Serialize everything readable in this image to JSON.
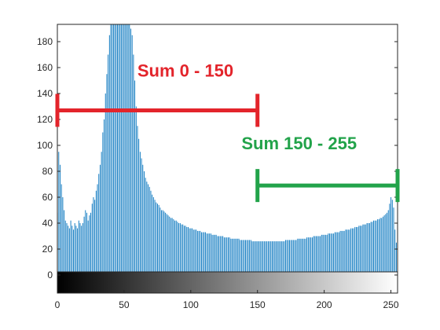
{
  "chart_data": {
    "type": "bar",
    "title": "",
    "xlabel": "",
    "ylabel": "",
    "xlim": [
      0,
      255
    ],
    "ylim": [
      -15,
      200
    ],
    "x_ticks": [
      0,
      50,
      100,
      150,
      200,
      250
    ],
    "y_ticks": [
      0,
      20,
      40,
      60,
      80,
      100,
      120,
      140,
      160,
      180
    ],
    "grid": false,
    "legend": "none",
    "bar_color": "#0072BD",
    "colorbar": {
      "from": "#000000",
      "to": "#ffffff",
      "range": [
        0,
        255
      ]
    },
    "series": [
      {
        "values": [
          48,
          95,
          85,
          70,
          60,
          50,
          42,
          40,
          38,
          36,
          42,
          38,
          35,
          40,
          38,
          36,
          42,
          40,
          38,
          40,
          45,
          50,
          48,
          42,
          46,
          48,
          55,
          60,
          58,
          65,
          70,
          78,
          85,
          95,
          110,
          120,
          140,
          155,
          170,
          185,
          195,
          200,
          200,
          200,
          200,
          200,
          200,
          200,
          200,
          200,
          200,
          200,
          200,
          200,
          200,
          190,
          185,
          170,
          150,
          130,
          115,
          105,
          95,
          90,
          85,
          80,
          75,
          72,
          70,
          68,
          65,
          62,
          60,
          58,
          56,
          55,
          54,
          52,
          50,
          50,
          49,
          48,
          47,
          46,
          45,
          44,
          44,
          43,
          42,
          42,
          41,
          40,
          40,
          39,
          39,
          38,
          38,
          37,
          37,
          36,
          36,
          36,
          35,
          35,
          35,
          34,
          34,
          34,
          33,
          33,
          33,
          33,
          32,
          32,
          32,
          32,
          31,
          31,
          31,
          31,
          30,
          30,
          30,
          30,
          30,
          29,
          29,
          29,
          29,
          29,
          28,
          28,
          28,
          28,
          28,
          28,
          28,
          27,
          27,
          27,
          27,
          27,
          27,
          27,
          27,
          27,
          26,
          26,
          26,
          26,
          26,
          26,
          26,
          26,
          26,
          26,
          26,
          26,
          26,
          26,
          26,
          26,
          26,
          26,
          26,
          26,
          26,
          26,
          26,
          26,
          26,
          27,
          27,
          27,
          27,
          27,
          27,
          27,
          27,
          27,
          28,
          28,
          28,
          28,
          28,
          28,
          28,
          29,
          29,
          29,
          29,
          29,
          30,
          30,
          30,
          30,
          30,
          30,
          31,
          31,
          31,
          31,
          31,
          32,
          32,
          32,
          32,
          32,
          33,
          33,
          33,
          33,
          34,
          34,
          34,
          34,
          35,
          35,
          35,
          35,
          36,
          36,
          36,
          37,
          37,
          37,
          38,
          38,
          38,
          39,
          39,
          39,
          40,
          40,
          40,
          41,
          41,
          42,
          42,
          42,
          43,
          43,
          44,
          44,
          45,
          46,
          47,
          48,
          50,
          55,
          60,
          58,
          52,
          35,
          25,
          15
        ]
      }
    ],
    "annotations": [
      {
        "text": "Sum 0 - 150",
        "color": "#E3242B",
        "from": 0,
        "to": 150,
        "y": 127,
        "label_x": 60,
        "label_y": 153
      },
      {
        "text": "Sum 150 - 255",
        "color": "#22A34A",
        "from": 150,
        "to": 255,
        "y": 69,
        "label_x": 138,
        "label_y": 97
      }
    ]
  }
}
